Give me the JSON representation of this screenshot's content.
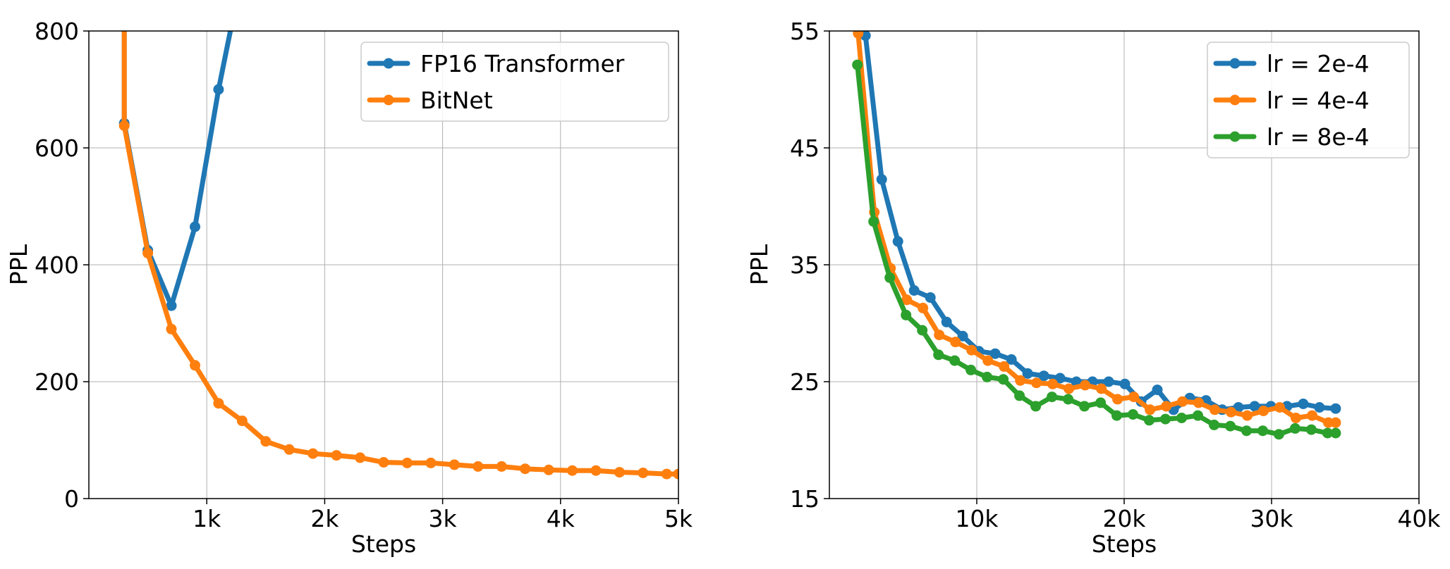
{
  "chart_data": [
    {
      "type": "line",
      "xlabel": "Steps",
      "ylabel": "PPL",
      "xlim": [
        0,
        5000
      ],
      "ylim": [
        0,
        800
      ],
      "xticks": [
        1000,
        2000,
        3000,
        4000,
        5000
      ],
      "xtick_labels": [
        "1k",
        "2k",
        "3k",
        "4k",
        "5k"
      ],
      "yticks": [
        0,
        200,
        400,
        600,
        800
      ],
      "ytick_labels": [
        "0",
        "200",
        "400",
        "600",
        "800"
      ],
      "grid": true,
      "legend_position": "top-right",
      "series": [
        {
          "name": "FP16 Transformer",
          "color": "#1f77b4",
          "points": [
            [
              300,
              900
            ],
            [
              300,
              642
            ],
            [
              500,
              425
            ],
            [
              700,
              330
            ],
            [
              900,
              465
            ],
            [
              1100,
              700
            ],
            [
              1300,
              900
            ]
          ]
        },
        {
          "name": "BitNet",
          "color": "#ff7f0e",
          "points": [
            [
              300,
              900
            ],
            [
              300,
              638
            ],
            [
              500,
              420
            ],
            [
              700,
              290
            ],
            [
              900,
              228
            ],
            [
              1100,
              163
            ],
            [
              1300,
              133
            ],
            [
              1500,
              98
            ],
            [
              1700,
              84
            ],
            [
              1900,
              77
            ],
            [
              2100,
              74
            ],
            [
              2300,
              70
            ],
            [
              2500,
              62
            ],
            [
              2700,
              61
            ],
            [
              2900,
              61
            ],
            [
              3100,
              58
            ],
            [
              3300,
              55
            ],
            [
              3500,
              55
            ],
            [
              3700,
              51
            ],
            [
              3900,
              49
            ],
            [
              4100,
              48
            ],
            [
              4300,
              48
            ],
            [
              4500,
              45
            ],
            [
              4700,
              44
            ],
            [
              4900,
              42
            ],
            [
              5000,
              42
            ]
          ]
        }
      ]
    },
    {
      "type": "line",
      "xlabel": "Steps",
      "ylabel": "PPL",
      "xlim": [
        0,
        40000
      ],
      "ylim": [
        15,
        55
      ],
      "xticks": [
        10000,
        20000,
        30000,
        40000
      ],
      "xtick_labels": [
        "10k",
        "20k",
        "30k",
        "40k"
      ],
      "yticks": [
        15,
        25,
        35,
        45,
        55
      ],
      "ytick_labels": [
        "15",
        "25",
        "35",
        "45",
        "55"
      ],
      "grid": true,
      "legend_position": "top-right",
      "series": [
        {
          "name": "lr = 2e-4",
          "color": "#1f77b4",
          "points": [
            [
              2000,
              58
            ],
            [
              2450,
              54.6
            ],
            [
              3550,
              42.3
            ],
            [
              4650,
              37.0
            ],
            [
              5750,
              32.8
            ],
            [
              6850,
              32.2
            ],
            [
              7950,
              30.1
            ],
            [
              9050,
              28.9
            ],
            [
              10150,
              27.6
            ],
            [
              11250,
              27.4
            ],
            [
              12350,
              26.9
            ],
            [
              13450,
              25.7
            ],
            [
              14550,
              25.5
            ],
            [
              15650,
              25.3
            ],
            [
              16750,
              25.0
            ],
            [
              17850,
              25.0
            ],
            [
              18950,
              25.0
            ],
            [
              20050,
              24.8
            ],
            [
              21150,
              23.3
            ],
            [
              22250,
              24.3
            ],
            [
              23350,
              22.6
            ],
            [
              24450,
              23.6
            ],
            [
              25550,
              23.4
            ],
            [
              26650,
              22.6
            ],
            [
              27750,
              22.8
            ],
            [
              28850,
              22.9
            ],
            [
              29950,
              22.9
            ],
            [
              31050,
              22.9
            ],
            [
              32150,
              23.1
            ],
            [
              33250,
              22.8
            ],
            [
              34350,
              22.7
            ]
          ]
        },
        {
          "name": "lr = 4e-4",
          "color": "#ff7f0e",
          "points": [
            [
              1950,
              54.8
            ],
            [
              3050,
              39.5
            ],
            [
              4150,
              34.7
            ],
            [
              5250,
              32.0
            ],
            [
              6350,
              31.3
            ],
            [
              7450,
              29.0
            ],
            [
              8550,
              28.4
            ],
            [
              9650,
              27.7
            ],
            [
              10750,
              26.8
            ],
            [
              11850,
              26.3
            ],
            [
              12950,
              25.1
            ],
            [
              14050,
              24.9
            ],
            [
              15150,
              24.8
            ],
            [
              16250,
              24.4
            ],
            [
              17350,
              24.7
            ],
            [
              18450,
              24.4
            ],
            [
              19550,
              23.5
            ],
            [
              20650,
              23.7
            ],
            [
              21750,
              22.6
            ],
            [
              22850,
              22.9
            ],
            [
              23950,
              23.3
            ],
            [
              25050,
              23.2
            ],
            [
              26150,
              22.6
            ],
            [
              27250,
              22.4
            ],
            [
              28350,
              22.1
            ],
            [
              29450,
              22.5
            ],
            [
              30550,
              22.8
            ],
            [
              31650,
              21.9
            ],
            [
              32750,
              22.1
            ],
            [
              33850,
              21.5
            ],
            [
              34350,
              21.5
            ]
          ]
        },
        {
          "name": "lr = 8e-4",
          "color": "#2ca02c",
          "points": [
            [
              1900,
              52.1
            ],
            [
              3000,
              38.7
            ],
            [
              4100,
              33.9
            ],
            [
              5200,
              30.7
            ],
            [
              6300,
              29.4
            ],
            [
              7400,
              27.3
            ],
            [
              8500,
              26.8
            ],
            [
              9600,
              26.0
            ],
            [
              10700,
              25.4
            ],
            [
              11800,
              25.2
            ],
            [
              12900,
              23.8
            ],
            [
              14000,
              22.9
            ],
            [
              15100,
              23.7
            ],
            [
              16200,
              23.5
            ],
            [
              17300,
              22.9
            ],
            [
              18400,
              23.2
            ],
            [
              19500,
              22.1
            ],
            [
              20600,
              22.2
            ],
            [
              21700,
              21.7
            ],
            [
              22800,
              21.8
            ],
            [
              23900,
              21.9
            ],
            [
              25000,
              22.1
            ],
            [
              26100,
              21.3
            ],
            [
              27200,
              21.2
            ],
            [
              28300,
              20.8
            ],
            [
              29400,
              20.8
            ],
            [
              30500,
              20.5
            ],
            [
              31600,
              21.0
            ],
            [
              32700,
              20.9
            ],
            [
              33800,
              20.6
            ],
            [
              34350,
              20.6
            ]
          ]
        }
      ]
    }
  ]
}
